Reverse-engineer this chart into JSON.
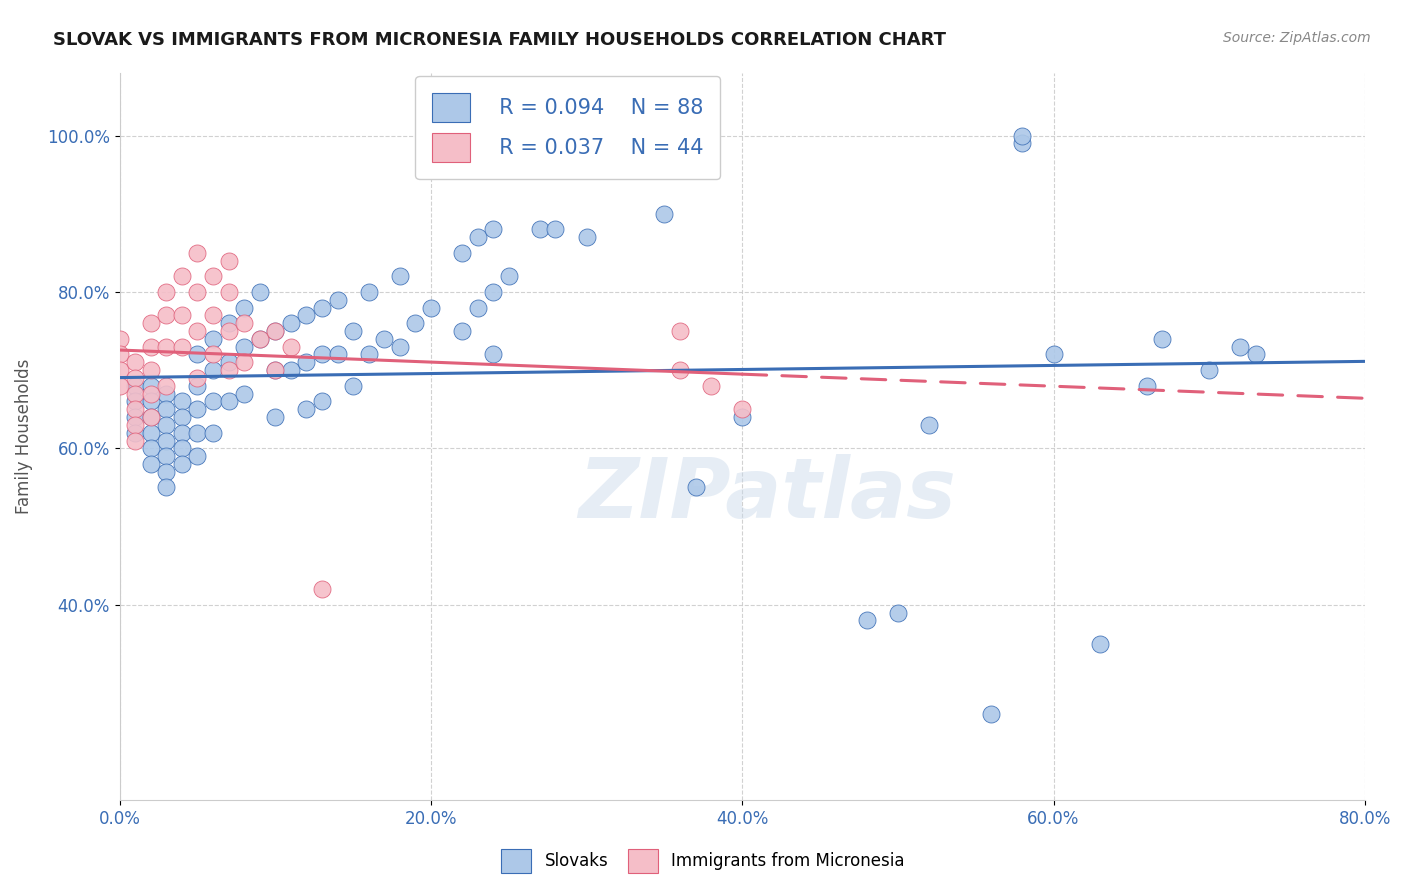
{
  "title": "SLOVAK VS IMMIGRANTS FROM MICRONESIA FAMILY HOUSEHOLDS CORRELATION CHART",
  "source": "Source: ZipAtlas.com",
  "ylabel": "Family Households",
  "xlim": [
    0.0,
    0.8
  ],
  "ylim": [
    0.15,
    1.08
  ],
  "xtick_labels": [
    "0.0%",
    "20.0%",
    "40.0%",
    "60.0%",
    "80.0%"
  ],
  "xtick_vals": [
    0.0,
    0.2,
    0.4,
    0.6,
    0.8
  ],
  "ytick_labels": [
    "40.0%",
    "60.0%",
    "80.0%",
    "100.0%"
  ],
  "ytick_vals": [
    0.4,
    0.6,
    0.8,
    1.0
  ],
  "blue_color": "#adc8e8",
  "pink_color": "#f5bec8",
  "blue_line_color": "#3a6db5",
  "pink_line_color": "#e0607a",
  "legend_blue_r": "R = 0.094",
  "legend_blue_n": "N = 88",
  "legend_pink_r": "R = 0.037",
  "legend_pink_n": "N = 44",
  "legend_label_blue": "Slovaks",
  "legend_label_pink": "Immigrants from Micronesia",
  "blue_scatter_x": [
    0.01,
    0.01,
    0.01,
    0.01,
    0.02,
    0.02,
    0.02,
    0.02,
    0.02,
    0.02,
    0.03,
    0.03,
    0.03,
    0.03,
    0.03,
    0.03,
    0.03,
    0.04,
    0.04,
    0.04,
    0.04,
    0.04,
    0.05,
    0.05,
    0.05,
    0.05,
    0.05,
    0.06,
    0.06,
    0.06,
    0.06,
    0.07,
    0.07,
    0.07,
    0.08,
    0.08,
    0.08,
    0.09,
    0.09,
    0.1,
    0.1,
    0.1,
    0.11,
    0.11,
    0.12,
    0.12,
    0.12,
    0.13,
    0.13,
    0.13,
    0.14,
    0.14,
    0.15,
    0.15,
    0.16,
    0.16,
    0.17,
    0.18,
    0.18,
    0.19,
    0.2,
    0.22,
    0.22,
    0.23,
    0.23,
    0.24,
    0.24,
    0.24,
    0.25,
    0.27,
    0.28,
    0.3,
    0.35,
    0.37,
    0.4,
    0.48,
    0.5,
    0.52,
    0.56,
    0.58,
    0.58,
    0.6,
    0.63,
    0.66,
    0.67,
    0.7,
    0.72,
    0.73
  ],
  "blue_scatter_y": [
    0.68,
    0.66,
    0.64,
    0.62,
    0.68,
    0.66,
    0.64,
    0.62,
    0.6,
    0.58,
    0.67,
    0.65,
    0.63,
    0.61,
    0.59,
    0.57,
    0.55,
    0.66,
    0.64,
    0.62,
    0.6,
    0.58,
    0.72,
    0.68,
    0.65,
    0.62,
    0.59,
    0.74,
    0.7,
    0.66,
    0.62,
    0.76,
    0.71,
    0.66,
    0.78,
    0.73,
    0.67,
    0.8,
    0.74,
    0.75,
    0.7,
    0.64,
    0.76,
    0.7,
    0.77,
    0.71,
    0.65,
    0.78,
    0.72,
    0.66,
    0.79,
    0.72,
    0.75,
    0.68,
    0.8,
    0.72,
    0.74,
    0.82,
    0.73,
    0.76,
    0.78,
    0.85,
    0.75,
    0.87,
    0.78,
    0.88,
    0.8,
    0.72,
    0.82,
    0.88,
    0.88,
    0.87,
    0.9,
    0.55,
    0.64,
    0.38,
    0.39,
    0.63,
    0.26,
    0.99,
    1.0,
    0.72,
    0.35,
    0.68,
    0.74,
    0.7,
    0.73,
    0.72
  ],
  "pink_scatter_x": [
    0.0,
    0.0,
    0.0,
    0.0,
    0.01,
    0.01,
    0.01,
    0.01,
    0.01,
    0.01,
    0.02,
    0.02,
    0.02,
    0.02,
    0.02,
    0.03,
    0.03,
    0.03,
    0.03,
    0.04,
    0.04,
    0.04,
    0.05,
    0.05,
    0.05,
    0.05,
    0.06,
    0.06,
    0.06,
    0.07,
    0.07,
    0.07,
    0.07,
    0.08,
    0.08,
    0.09,
    0.1,
    0.1,
    0.11,
    0.13,
    0.36,
    0.36,
    0.38,
    0.4
  ],
  "pink_scatter_y": [
    0.74,
    0.72,
    0.7,
    0.68,
    0.71,
    0.69,
    0.67,
    0.65,
    0.63,
    0.61,
    0.76,
    0.73,
    0.7,
    0.67,
    0.64,
    0.8,
    0.77,
    0.73,
    0.68,
    0.82,
    0.77,
    0.73,
    0.85,
    0.8,
    0.75,
    0.69,
    0.82,
    0.77,
    0.72,
    0.84,
    0.8,
    0.75,
    0.7,
    0.76,
    0.71,
    0.74,
    0.75,
    0.7,
    0.73,
    0.42,
    0.75,
    0.7,
    0.68,
    0.65
  ],
  "watermark": "ZIPatlas",
  "background_color": "#ffffff",
  "grid_color": "#cccccc"
}
